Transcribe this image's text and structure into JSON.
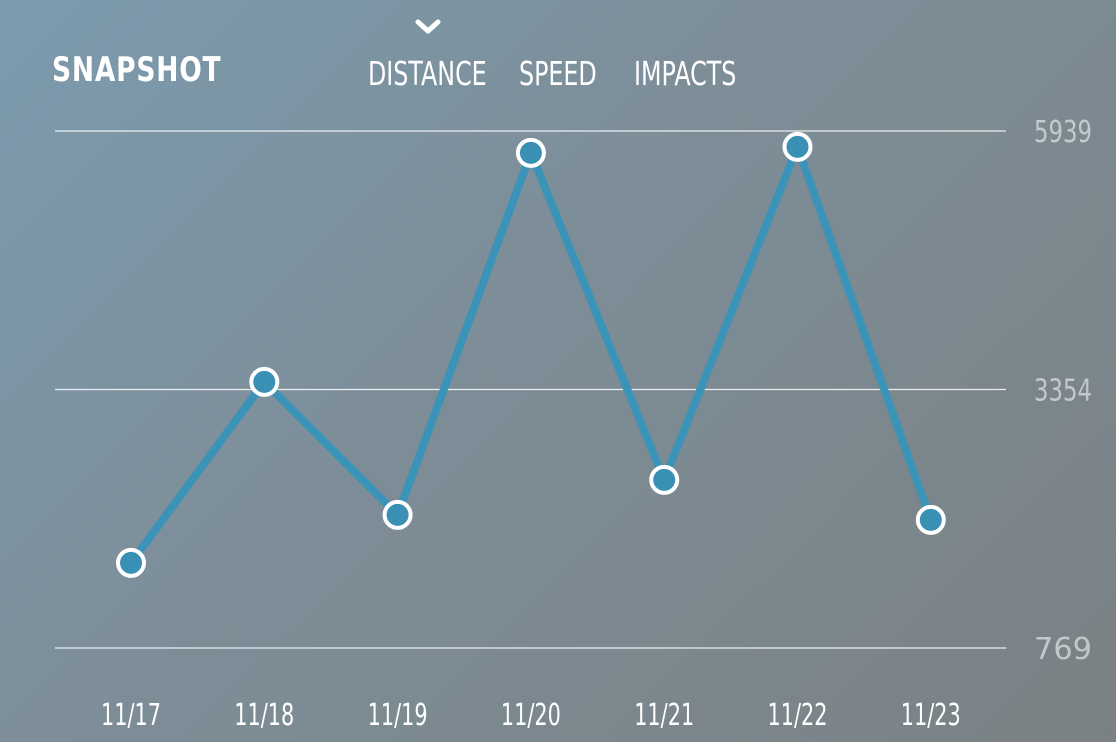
{
  "header": {
    "title": "SNAPSHOT",
    "tabs": [
      {
        "label": "DISTANCE",
        "selected": true
      },
      {
        "label": "SPEED",
        "selected": false
      },
      {
        "label": "IMPACTS",
        "selected": false
      }
    ]
  },
  "colors": {
    "line": "#3b93b8",
    "point_fill": "#3a8fb5",
    "point_stroke": "#ffffff",
    "gridline": "#ffffff"
  },
  "chart_data": {
    "type": "line",
    "categories": [
      "11/17",
      "11/18",
      "11/19",
      "11/20",
      "11/21",
      "11/22",
      "11/23"
    ],
    "values": [
      1620,
      3430,
      2100,
      5720,
      2450,
      5780,
      2050
    ],
    "y_ticks": [
      "5939",
      "3354",
      "769"
    ],
    "ylim": [
      769,
      5939
    ],
    "grid": true
  }
}
